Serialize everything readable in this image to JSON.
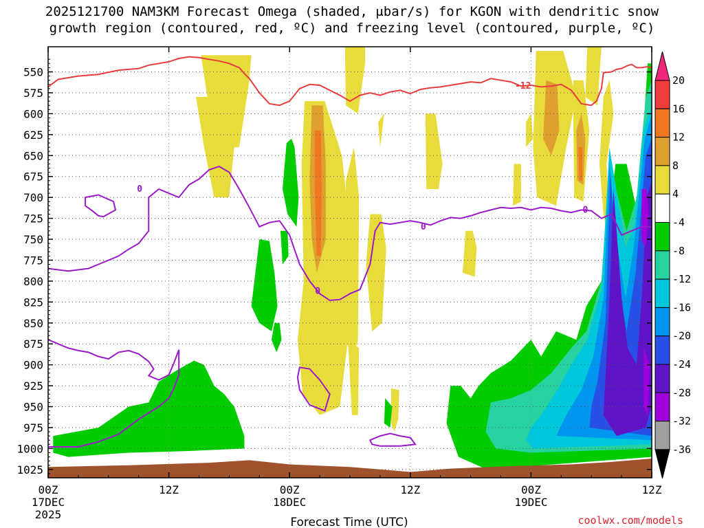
{
  "header": {
    "title_line1": "2025121700 NAM3KM Forecast Omega (shaded, μbar/s) for KGON with dendritic snow",
    "title_line2": "growth region (contoured, red, ºC) and freezing level (contoured, purple, ºC)"
  },
  "credit": "coolwx.com/models",
  "chart_data": {
    "type": "time-height cross section",
    "title": "2025121700 NAM3KM Forecast Omega (shaded, μbar/s) for KGON with dendritic snow growth region (contoured, red, ºC) and freezing level (contoured, purple, ºC)",
    "xlabel": "Forecast Time (UTC)",
    "ylabel": "",
    "x_range_hours": [
      0,
      60
    ],
    "y_range_hPa": [
      1035,
      520
    ],
    "x_ticks": [
      {
        "hour": 0,
        "label": "00Z",
        "sub1": "17DEC",
        "sub2": "2025"
      },
      {
        "hour": 12,
        "label": "12Z",
        "sub1": "",
        "sub2": ""
      },
      {
        "hour": 24,
        "label": "00Z",
        "sub1": "18DEC",
        "sub2": ""
      },
      {
        "hour": 36,
        "label": "12Z",
        "sub1": "",
        "sub2": ""
      },
      {
        "hour": 48,
        "label": "00Z",
        "sub1": "19DEC",
        "sub2": ""
      },
      {
        "hour": 60,
        "label": "12Z",
        "sub1": "",
        "sub2": ""
      }
    ],
    "y_ticks": [
      550,
      575,
      600,
      625,
      650,
      675,
      700,
      725,
      750,
      775,
      800,
      825,
      850,
      875,
      900,
      925,
      950,
      975,
      1000,
      1025
    ],
    "colorbar": {
      "labels": [
        "20",
        "16",
        "12",
        "8",
        "4",
        "-4",
        "-8",
        "-12",
        "-16",
        "-20",
        "-24",
        "-28",
        "-32",
        "-36"
      ],
      "bins": [
        {
          "range": [
            16,
            20
          ],
          "color": "#f03c3c"
        },
        {
          "range": [
            12,
            16
          ],
          "color": "#f07820"
        },
        {
          "range": [
            8,
            12
          ],
          "color": "#e0a030"
        },
        {
          "range": [
            4,
            8
          ],
          "color": "#e8dc3c"
        },
        {
          "range": [
            -4,
            4
          ],
          "color": "#ffffff"
        },
        {
          "range": [
            -8,
            -4
          ],
          "color": "#00cc00"
        },
        {
          "range": [
            -12,
            -8
          ],
          "color": "#28d2a0"
        },
        {
          "range": [
            -16,
            -12
          ],
          "color": "#00c8dc"
        },
        {
          "range": [
            -20,
            -16
          ],
          "color": "#0096f0"
        },
        {
          "range": [
            -24,
            -20
          ],
          "color": "#2850e6"
        },
        {
          "range": [
            -28,
            -24
          ],
          "color": "#6014c8"
        },
        {
          "range": [
            -32,
            -28
          ],
          "color": "#a000dc"
        },
        {
          "range": [
            -36,
            -32
          ],
          "color": "#a0a0a0"
        }
      ],
      "top_arrow_color": "#f0287c",
      "bottom_arrow_color": "#000000"
    },
    "contours": {
      "dgz_color": "#e83c3c",
      "dgz_label": "-12",
      "dgz_label_at": {
        "hour": 47.2,
        "hPa": 567
      },
      "dgz_line": [
        [
          0,
          568
        ],
        [
          1,
          559
        ],
        [
          3,
          555
        ],
        [
          5,
          553
        ],
        [
          7,
          548
        ],
        [
          8,
          547
        ],
        [
          9,
          546
        ],
        [
          10,
          542
        ],
        [
          11,
          540
        ],
        [
          12,
          538
        ],
        [
          13,
          534
        ],
        [
          14,
          532
        ],
        [
          15,
          533
        ],
        [
          16,
          535
        ],
        [
          17,
          537
        ],
        [
          18,
          540
        ],
        [
          19,
          545
        ],
        [
          19.5,
          552
        ],
        [
          20,
          558
        ],
        [
          21,
          575
        ],
        [
          22,
          588
        ],
        [
          23,
          590
        ],
        [
          24,
          585
        ],
        [
          25,
          570
        ],
        [
          26,
          565
        ],
        [
          27,
          566
        ],
        [
          28,
          572
        ],
        [
          29,
          578
        ],
        [
          30,
          585
        ],
        [
          31,
          578
        ],
        [
          32,
          575
        ],
        [
          33,
          578
        ],
        [
          34,
          574
        ],
        [
          35,
          572
        ],
        [
          36,
          576
        ],
        [
          37,
          571
        ],
        [
          38,
          569
        ],
        [
          39,
          568
        ],
        [
          40,
          566
        ],
        [
          41,
          564
        ],
        [
          42,
          562
        ],
        [
          43,
          563
        ],
        [
          44,
          558
        ],
        [
          45,
          560
        ],
        [
          46,
          562
        ],
        [
          47,
          567
        ],
        [
          48,
          566
        ],
        [
          49,
          568
        ],
        [
          50,
          567
        ],
        [
          51,
          565
        ],
        [
          52,
          572
        ],
        [
          53,
          588
        ],
        [
          54,
          590
        ],
        [
          54.5,
          585
        ],
        [
          55,
          570
        ],
        [
          55.2,
          551
        ],
        [
          56,
          550
        ],
        [
          56.5,
          547
        ],
        [
          57,
          546
        ],
        [
          57.5,
          543
        ],
        [
          58,
          541
        ],
        [
          58.5,
          545
        ],
        [
          59,
          545
        ],
        [
          59.5,
          544
        ],
        [
          60,
          545
        ]
      ],
      "freezing_color": "#9b19c8",
      "freezing_label": "0",
      "freezing_label_at": [
        {
          "hour": 9.1,
          "hPa": 690
        },
        {
          "hour": 26.8,
          "hPa": 812
        },
        {
          "hour": 37.3,
          "hPa": 735
        },
        {
          "hour": 53.4,
          "hPa": 715
        }
      ],
      "freezing_main": [
        [
          0,
          785
        ],
        [
          2,
          788
        ],
        [
          4,
          785
        ],
        [
          5,
          780
        ],
        [
          6,
          775
        ],
        [
          7,
          770
        ],
        [
          8,
          762
        ],
        [
          9,
          755
        ],
        [
          10,
          740
        ],
        [
          10,
          715
        ],
        [
          10,
          700
        ],
        [
          11,
          690
        ],
        [
          12,
          695
        ],
        [
          13,
          700
        ],
        [
          14,
          685
        ],
        [
          15,
          678
        ],
        [
          16,
          667
        ],
        [
          17,
          663
        ],
        [
          18,
          670
        ],
        [
          19,
          690
        ],
        [
          20,
          712
        ],
        [
          21,
          735
        ],
        [
          22,
          730
        ],
        [
          23,
          728
        ],
        [
          24,
          745
        ],
        [
          25,
          780
        ],
        [
          26,
          800
        ],
        [
          27,
          815
        ],
        [
          28,
          823
        ],
        [
          29,
          822
        ],
        [
          30,
          815
        ],
        [
          31,
          810
        ],
        [
          32,
          780
        ],
        [
          32.5,
          740
        ],
        [
          33,
          730
        ],
        [
          34,
          732
        ],
        [
          35,
          730
        ],
        [
          36,
          728
        ],
        [
          37,
          730
        ],
        [
          38,
          733
        ],
        [
          39,
          728
        ],
        [
          40,
          724
        ],
        [
          41,
          725
        ],
        [
          42,
          722
        ],
        [
          43,
          718
        ],
        [
          44,
          715
        ],
        [
          45,
          712
        ],
        [
          46,
          713
        ],
        [
          47,
          712
        ],
        [
          48,
          715
        ],
        [
          49,
          712
        ],
        [
          50,
          713
        ],
        [
          51,
          716
        ],
        [
          52,
          718
        ],
        [
          53,
          715
        ],
        [
          54,
          716
        ],
        [
          55,
          725
        ],
        [
          56,
          720
        ],
        [
          57,
          745
        ],
        [
          58,
          740
        ],
        [
          59,
          735
        ],
        [
          60,
          735
        ]
      ],
      "freezing_lower": [
        [
          0,
          870
        ],
        [
          1,
          875
        ],
        [
          2,
          880
        ],
        [
          3,
          883
        ],
        [
          4,
          885
        ],
        [
          5,
          890
        ],
        [
          6,
          893
        ],
        [
          7,
          885
        ],
        [
          8,
          883
        ],
        [
          9,
          887
        ],
        [
          10,
          896
        ],
        [
          10.5,
          905
        ],
        [
          10,
          913
        ],
        [
          11,
          918
        ],
        [
          12,
          912
        ],
        [
          12.5,
          898
        ],
        [
          13,
          882
        ],
        [
          13,
          895
        ],
        [
          13,
          912
        ],
        [
          12.5,
          928
        ],
        [
          12,
          940
        ],
        [
          11,
          950
        ],
        [
          9,
          965
        ],
        [
          7,
          983
        ],
        [
          5,
          992
        ],
        [
          3,
          998
        ],
        [
          0,
          998
        ]
      ],
      "freezing_loops": [
        [
          [
            3.7,
            700
          ],
          [
            5,
            697
          ],
          [
            6.5,
            705
          ],
          [
            6.7,
            715
          ],
          [
            5.5,
            723
          ],
          [
            5,
            722
          ],
          [
            4.5,
            717
          ],
          [
            3.7,
            710
          ],
          [
            3.7,
            700
          ]
        ],
        [
          [
            25,
            903
          ],
          [
            26,
            905
          ],
          [
            27,
            918
          ],
          [
            28,
            935
          ],
          [
            27.5,
            955
          ],
          [
            26,
            948
          ],
          [
            25,
            930
          ],
          [
            24.8,
            915
          ],
          [
            25,
            903
          ]
        ],
        [
          [
            32,
            990
          ],
          [
            33,
            985
          ],
          [
            34,
            982
          ],
          [
            35,
            985
          ],
          [
            36,
            987
          ],
          [
            36.5,
            995
          ],
          [
            35,
            997
          ],
          [
            33,
            997
          ],
          [
            32.2,
            995
          ],
          [
            32,
            990
          ]
        ]
      ]
    }
  }
}
